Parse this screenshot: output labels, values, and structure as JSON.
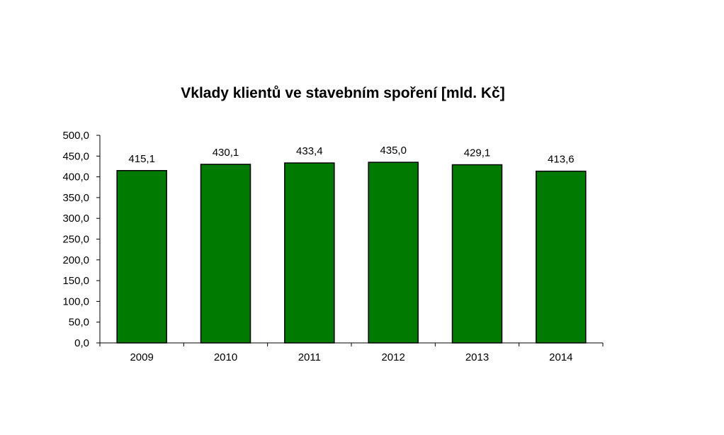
{
  "chart_data": {
    "type": "bar",
    "title": "Vklady klientů ve stavebním spoření [mld. Kč]",
    "categories": [
      "2009",
      "2010",
      "2011",
      "2012",
      "2013",
      "2014"
    ],
    "values": [
      415.1,
      430.1,
      433.4,
      435.0,
      429.1,
      413.6
    ],
    "value_labels": [
      "415,1",
      "430,1",
      "433,4",
      "435,0",
      "429,1",
      "413,6"
    ],
    "y_ticks": [
      "0,0",
      "50,0",
      "100,0",
      "150,0",
      "200,0",
      "250,0",
      "300,0",
      "350,0",
      "400,0",
      "450,0",
      "500,0"
    ],
    "ylim": [
      0,
      500
    ],
    "grid": false,
    "legend": false,
    "bar_color": "#007A00",
    "bar_outline": "#000000"
  }
}
